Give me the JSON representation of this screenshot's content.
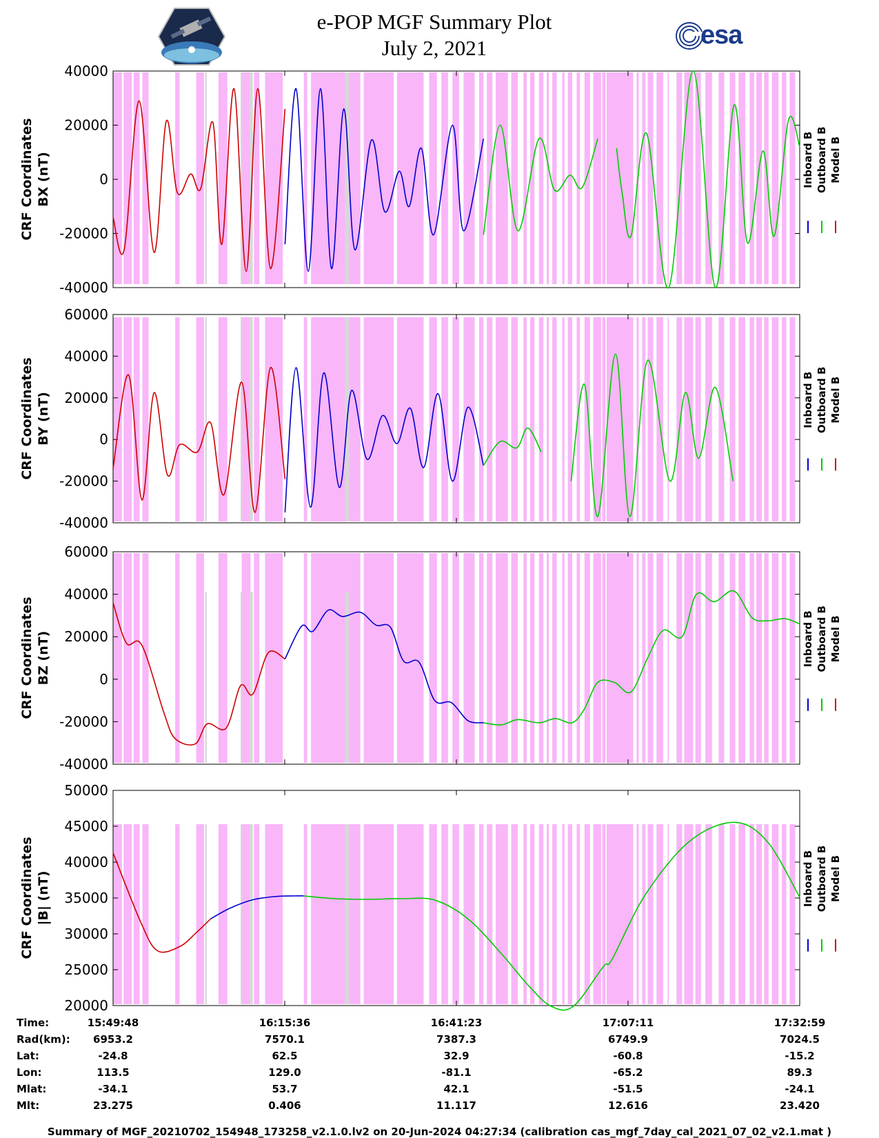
{
  "header": {
    "title_line1": "e-POP MGF Summary Plot",
    "title_line2": "July 2, 2021",
    "left_logo": "cassiope-satellite-logo",
    "right_logo_text": "esa"
  },
  "colors": {
    "inboard": "#0000cc",
    "outboard": "#00cc00",
    "model": "#cc0000",
    "shade_pink": "#f9b6f9",
    "shade_gray": "#d8d8d8"
  },
  "legend": [
    "Inboard B",
    "Outboard B",
    "Model B"
  ],
  "chart_data": [
    {
      "type": "line",
      "panel": "BX",
      "ylabel_line1": "CRF Coordinates",
      "ylabel_line2": "BX (nT)",
      "ylim": [
        -40000,
        40000
      ],
      "yticks": [
        "40000",
        "20000",
        "0",
        "-20000",
        "-40000"
      ],
      "xlim": [
        0,
        6191
      ],
      "series": [
        {
          "name": "Model B",
          "color_key": "model",
          "x_range": [
            0,
            1550
          ],
          "x": [
            0,
            100,
            235,
            370,
            480,
            580,
            700,
            790,
            900,
            980,
            1090,
            1200,
            1305,
            1420,
            1550
          ],
          "y": [
            -14000,
            -26000,
            29000,
            -27000,
            21500,
            -5000,
            2000,
            -3500,
            21000,
            -24000,
            33500,
            -34000,
            33500,
            -33000,
            26000
          ]
        },
        {
          "name": "Inboard B",
          "color_key": "inboard",
          "x_range": [
            1550,
            3340
          ],
          "x": [
            1550,
            1650,
            1760,
            1870,
            1970,
            2080,
            2180,
            2330,
            2450,
            2580,
            2670,
            2780,
            2890,
            3060,
            3160,
            3340
          ],
          "y": [
            -24000,
            33500,
            -34000,
            33500,
            -33000,
            26000,
            -26000,
            14500,
            -12000,
            3000,
            -10000,
            11500,
            -20500,
            20000,
            -19000,
            15000
          ]
        },
        {
          "name": "Outboard B",
          "color_key": "outboard",
          "x_range": [
            3340,
            6191
          ],
          "x": [
            3340,
            3490,
            3650,
            3840,
            3980,
            4120,
            4230,
            4370,
            4470,
            4540,
            4590,
            4670,
            4810,
            5010,
            5230,
            5430,
            5600,
            5720,
            5860,
            5960,
            6090,
            6191
          ],
          "y": [
            -20500,
            20000,
            -19000,
            15000,
            -4000,
            1500,
            -3000,
            15000,
            null,
            11500,
            -5000,
            -21000,
            17000,
            -40000,
            40000,
            -40000,
            27500,
            -23500,
            10500,
            -21000,
            22000,
            12000
          ]
        }
      ]
    },
    {
      "type": "line",
      "panel": "BY",
      "ylabel_line1": "CRF Coordinates",
      "ylabel_line2": "BY (nT)",
      "ylim": [
        -40000,
        60000
      ],
      "yticks": [
        "60000",
        "40000",
        "20000",
        "0",
        "-20000",
        "-40000"
      ],
      "xlim": [
        0,
        6191
      ],
      "series": [
        {
          "name": "Model B",
          "color_key": "model",
          "x_range": [
            0,
            1550
          ],
          "x": [
            0,
            140,
            260,
            370,
            490,
            600,
            760,
            880,
            1000,
            1160,
            1280,
            1420,
            1550
          ],
          "y": [
            -14000,
            31000,
            -29000,
            22500,
            -17000,
            -2500,
            -6000,
            8000,
            -26500,
            27500,
            -35000,
            34500,
            -19000
          ]
        },
        {
          "name": "Inboard B",
          "color_key": "inboard",
          "x_range": [
            1550,
            3340
          ],
          "x": [
            1550,
            1650,
            1780,
            1900,
            2040,
            2150,
            2290,
            2430,
            2560,
            2680,
            2800,
            2930,
            3060,
            3200,
            3340
          ],
          "y": [
            -35000,
            34500,
            -32500,
            32000,
            -23000,
            23500,
            -9500,
            11500,
            -2000,
            15000,
            -13500,
            22000,
            -20000,
            15500,
            -12500
          ]
        },
        {
          "name": "Outboard B",
          "color_key": "outboard",
          "x_range": [
            3340,
            6191
          ],
          "x": [
            3340,
            3490,
            3640,
            3740,
            3860,
            4000,
            4130,
            4250,
            4370,
            4530,
            4660,
            4820,
            5020,
            5160,
            5280,
            5430,
            5590,
            5730,
            5860,
            5980,
            6100,
            6191
          ],
          "y": [
            -12500,
            -1000,
            -4000,
            5500,
            -6000,
            null,
            -20000,
            26500,
            -37000,
            41000,
            -37000,
            38000,
            -20000,
            22500,
            -9000,
            25000,
            -20000,
            null,
            null,
            null,
            null,
            null
          ]
        }
      ]
    },
    {
      "type": "line",
      "panel": "BZ",
      "ylabel_line1": "CRF Coordinates",
      "ylabel_line2": "BZ (nT)",
      "ylim": [
        -40000,
        60000
      ],
      "yticks": [
        "60000",
        "40000",
        "20000",
        "0",
        "-20000",
        "-40000"
      ],
      "xlim": [
        0,
        6191
      ],
      "series": [
        {
          "name": "Model B",
          "color_key": "model",
          "x_range": [
            0,
            1550
          ],
          "x": [
            0,
            120,
            260,
            460,
            560,
            740,
            850,
            1020,
            1150,
            1260,
            1400,
            1550
          ],
          "y": [
            36000,
            17000,
            16000,
            -16000,
            -28000,
            -30500,
            -21000,
            -23000,
            -3000,
            -7000,
            12500,
            9500
          ]
        },
        {
          "name": "Inboard B",
          "color_key": "inboard",
          "x_range": [
            1550,
            3340
          ],
          "x": [
            1550,
            1700,
            1800,
            1940,
            2070,
            2230,
            2370,
            2500,
            2620,
            2760,
            2900,
            3050,
            3200,
            3340
          ],
          "y": [
            9500,
            25000,
            22500,
            32500,
            29500,
            31500,
            25500,
            24500,
            8500,
            8000,
            -10000,
            -11000,
            -19500,
            -20500
          ]
        },
        {
          "name": "Outboard B",
          "color_key": "outboard",
          "x_range": [
            3340,
            6191
          ],
          "x": [
            3340,
            3500,
            3650,
            3840,
            3990,
            4140,
            4250,
            4370,
            4520,
            4670,
            4820,
            4960,
            5130,
            5260,
            5420,
            5600,
            5760,
            5900,
            6060,
            6191
          ],
          "y": [
            -20500,
            -21500,
            -19000,
            -20500,
            -18500,
            -20500,
            -14000,
            -1500,
            -1500,
            -6000,
            10000,
            23000,
            20000,
            40000,
            36500,
            41500,
            29000,
            27500,
            28500,
            26000
          ]
        }
      ]
    },
    {
      "type": "line",
      "panel": "B",
      "ylabel_line1": "CRF Coordinates",
      "ylabel_line2": "|B| (nT)",
      "ylim": [
        19000,
        50000
      ],
      "yticks": [
        "50000",
        "45000",
        "40000",
        "35000",
        "30000",
        "25000",
        "20000"
      ],
      "xlim": [
        0,
        6191
      ],
      "series": [
        {
          "name": "Model B",
          "color_key": "model",
          "x_range": [
            0,
            880
          ],
          "x": [
            0,
            250,
            400,
            600,
            750,
            880
          ],
          "y": [
            41000,
            31000,
            26900,
            27500,
            29500,
            31500
          ]
        },
        {
          "name": "Inboard B",
          "color_key": "inboard",
          "x_range": [
            880,
            1720
          ],
          "x": [
            880,
            1050,
            1250,
            1450,
            1620,
            1720
          ],
          "y": [
            31500,
            33000,
            34200,
            34700,
            34800,
            34800
          ]
        },
        {
          "name": "Outboard B",
          "color_key": "outboard",
          "x_range": [
            1720,
            6191
          ],
          "x": [
            1720,
            2000,
            2300,
            2600,
            2900,
            3200,
            3500,
            3750,
            3950,
            4150,
            4420,
            4500,
            4800,
            5200,
            5600,
            5900,
            6191
          ],
          "y": [
            34800,
            34400,
            34300,
            34400,
            34200,
            31500,
            26500,
            21800,
            18900,
            18900,
            24600,
            25700,
            35000,
            42700,
            45400,
            42600,
            34600
          ]
        }
      ]
    }
  ],
  "shading": {
    "pink_intervals": [
      [
        0,
        80
      ],
      [
        95,
        170
      ],
      [
        185,
        240
      ],
      [
        265,
        320
      ],
      [
        560,
        600
      ],
      [
        750,
        820
      ],
      [
        950,
        1030
      ],
      [
        1160,
        1240
      ],
      [
        1270,
        1320
      ],
      [
        1370,
        1530
      ],
      [
        1720,
        1750
      ],
      [
        1785,
        2230
      ],
      [
        2260,
        2530
      ],
      [
        2560,
        2800
      ],
      [
        2850,
        2920
      ],
      [
        2960,
        3020
      ],
      [
        3060,
        3120
      ],
      [
        3160,
        3260
      ],
      [
        3300,
        3340
      ],
      [
        3370,
        3420
      ],
      [
        3450,
        3560
      ],
      [
        3590,
        3650
      ],
      [
        3700,
        3730
      ],
      [
        3760,
        3800
      ],
      [
        3840,
        3880
      ],
      [
        3910,
        3930
      ],
      [
        3960,
        4000
      ],
      [
        4050,
        4070
      ],
      [
        4100,
        4140
      ],
      [
        4180,
        4210
      ],
      [
        4250,
        4300
      ],
      [
        4330,
        4400
      ],
      [
        4410,
        4440
      ],
      [
        4450,
        4690
      ],
      [
        4720,
        4740
      ],
      [
        4770,
        4800
      ],
      [
        4820,
        4870
      ],
      [
        4900,
        4960
      ],
      [
        5000,
        5010
      ],
      [
        5080,
        5130
      ],
      [
        5150,
        5230
      ],
      [
        5250,
        5300
      ],
      [
        5340,
        5400
      ],
      [
        5460,
        5510
      ],
      [
        5560,
        5610
      ],
      [
        5640,
        5700
      ],
      [
        5740,
        5780
      ],
      [
        5800,
        5850
      ],
      [
        5870,
        5910
      ],
      [
        5940,
        6000
      ],
      [
        6030,
        6070
      ],
      [
        6100,
        6150
      ]
    ],
    "gray_intervals": [
      [
        830,
        845
      ],
      [
        1150,
        1165
      ],
      [
        1230,
        1260
      ],
      [
        2090,
        2130
      ]
    ]
  },
  "info_table": {
    "labels": [
      "Time:",
      "Rad(km):",
      "Lat:",
      "Lon:",
      "Mlat:",
      "Mlt:"
    ],
    "columns": [
      [
        "15:49:48",
        "6953.2",
        "-24.8",
        "113.5",
        "-34.1",
        "23.275"
      ],
      [
        "16:15:36",
        "7570.1",
        "62.5",
        "129.0",
        "53.7",
        "0.406"
      ],
      [
        "16:41:23",
        "7387.3",
        "32.9",
        "-81.1",
        "42.1",
        "11.117"
      ],
      [
        "17:07:11",
        "6749.9",
        "-60.8",
        "-65.2",
        "-51.5",
        "12.616"
      ],
      [
        "17:32:59",
        "7024.5",
        "-15.2",
        "89.3",
        "-24.1",
        "23.420"
      ]
    ]
  },
  "footer": "Summary of MGF_20210702_154948_173258_v2.1.0.lv2 on 20-Jun-2024 04:27:34 (calibration cas_mgf_7day_cal_2021_07_02_v2.1.mat )"
}
